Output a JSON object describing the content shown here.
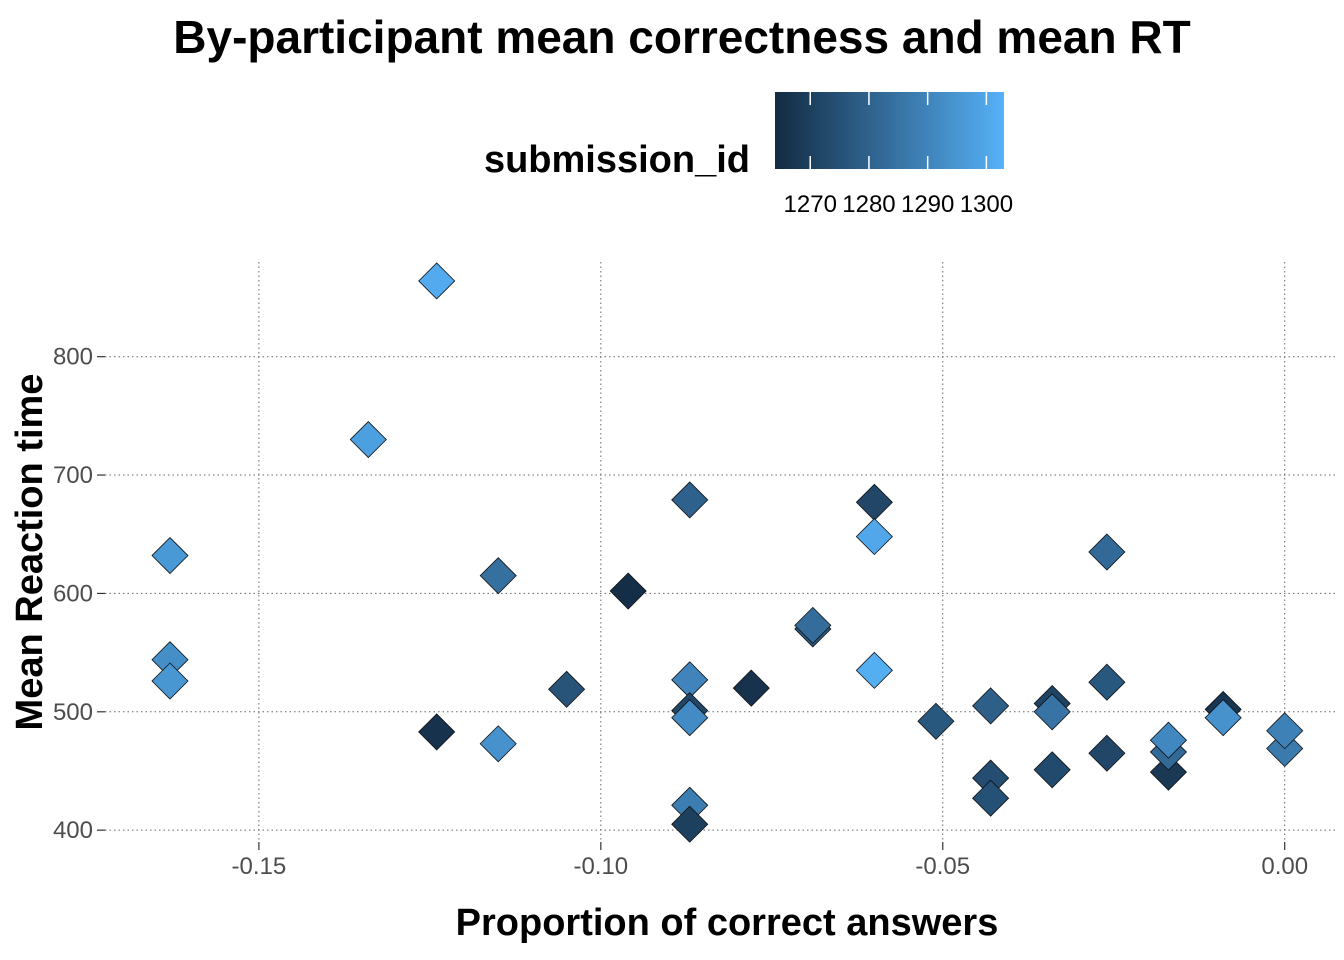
{
  "chart_data": {
    "type": "scatter",
    "title": "By-participant mean correctness and mean RT",
    "xlabel": "Proportion of correct answers",
    "ylabel": "Mean Reaction time",
    "xlim": [
      -0.1725,
      0.0075
    ],
    "ylim": [
      390,
      880
    ],
    "x_ticks": [
      -0.15,
      -0.1,
      -0.05,
      0.0
    ],
    "x_tick_labels": [
      "-0.15",
      "-0.10",
      "-0.05",
      "0.00"
    ],
    "y_ticks": [
      400,
      500,
      600,
      700,
      800
    ],
    "y_tick_labels": [
      "400",
      "500",
      "600",
      "700",
      "800"
    ],
    "grid": true,
    "marker": "diamond",
    "legend": {
      "title": "submission_id",
      "position": "top",
      "type": "colorbar",
      "range": [
        1264,
        1303
      ],
      "breaks": [
        1270,
        1280,
        1290,
        1300
      ],
      "break_labels": [
        "1270",
        "1280",
        "1290",
        "1300"
      ],
      "low_color": "#132b43",
      "high_color": "#56b1f7"
    },
    "points": [
      {
        "x": -0.124,
        "y": 864,
        "id": 1301
      },
      {
        "x": -0.134,
        "y": 730,
        "id": 1298
      },
      {
        "x": -0.163,
        "y": 632,
        "id": 1296
      },
      {
        "x": -0.163,
        "y": 544,
        "id": 1293
      },
      {
        "x": -0.163,
        "y": 526,
        "id": 1295
      },
      {
        "x": -0.124,
        "y": 483,
        "id": 1266
      },
      {
        "x": -0.115,
        "y": 615,
        "id": 1284
      },
      {
        "x": -0.115,
        "y": 473,
        "id": 1294
      },
      {
        "x": -0.105,
        "y": 519,
        "id": 1276
      },
      {
        "x": -0.096,
        "y": 602,
        "id": 1265
      },
      {
        "x": -0.087,
        "y": 679,
        "id": 1280
      },
      {
        "x": -0.087,
        "y": 527,
        "id": 1290
      },
      {
        "x": -0.087,
        "y": 501,
        "id": 1272
      },
      {
        "x": -0.087,
        "y": 495,
        "id": 1292
      },
      {
        "x": -0.087,
        "y": 421,
        "id": 1288
      },
      {
        "x": -0.087,
        "y": 405,
        "id": 1270
      },
      {
        "x": -0.078,
        "y": 520,
        "id": 1266
      },
      {
        "x": -0.069,
        "y": 570,
        "id": 1278
      },
      {
        "x": -0.069,
        "y": 573,
        "id": 1283
      },
      {
        "x": -0.06,
        "y": 677,
        "id": 1272
      },
      {
        "x": -0.06,
        "y": 648,
        "id": 1300
      },
      {
        "x": -0.06,
        "y": 535,
        "id": 1302
      },
      {
        "x": -0.051,
        "y": 492,
        "id": 1277
      },
      {
        "x": -0.043,
        "y": 505,
        "id": 1279
      },
      {
        "x": -0.043,
        "y": 444,
        "id": 1274
      },
      {
        "x": -0.043,
        "y": 427,
        "id": 1275
      },
      {
        "x": -0.034,
        "y": 507,
        "id": 1271
      },
      {
        "x": -0.034,
        "y": 500,
        "id": 1285
      },
      {
        "x": -0.034,
        "y": 451,
        "id": 1273
      },
      {
        "x": -0.026,
        "y": 635,
        "id": 1282
      },
      {
        "x": -0.026,
        "y": 525,
        "id": 1277
      },
      {
        "x": -0.026,
        "y": 465,
        "id": 1272
      },
      {
        "x": -0.017,
        "y": 449,
        "id": 1268
      },
      {
        "x": -0.017,
        "y": 466,
        "id": 1282
      },
      {
        "x": -0.017,
        "y": 476,
        "id": 1291
      },
      {
        "x": -0.009,
        "y": 502,
        "id": 1267
      },
      {
        "x": -0.009,
        "y": 495,
        "id": 1294
      },
      {
        "x": 0.0,
        "y": 469,
        "id": 1287
      },
      {
        "x": 0.0,
        "y": 484,
        "id": 1289
      }
    ]
  }
}
